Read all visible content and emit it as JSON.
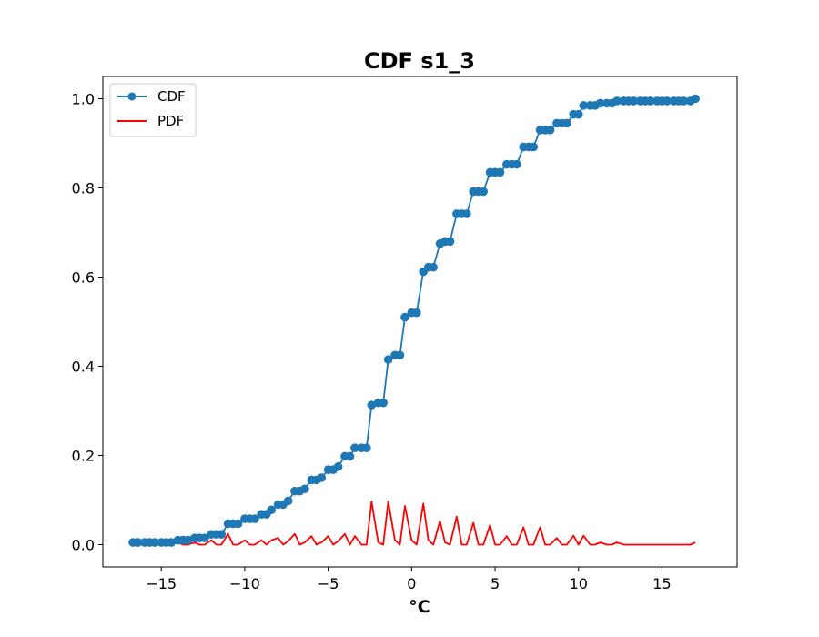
{
  "chart_data": {
    "type": "line",
    "title": "CDF s1_3",
    "xlabel": "°C",
    "ylabel": "",
    "xlim": [
      -18.5,
      19.5
    ],
    "ylim": [
      -0.05,
      1.05
    ],
    "xticks": [
      -15,
      -10,
      -5,
      0,
      5,
      10,
      15
    ],
    "xtick_labels": [
      "−15",
      "−10",
      "−5",
      "0",
      "5",
      "10",
      "15"
    ],
    "yticks": [
      0.0,
      0.2,
      0.4,
      0.6,
      0.8,
      1.0
    ],
    "ytick_labels": [
      "0.0",
      "0.2",
      "0.4",
      "0.6",
      "0.8",
      "1.0"
    ],
    "grid": false,
    "legend_position": "top-left",
    "colors": {
      "cdf": "#1f77b4",
      "pdf": "#ff0000"
    },
    "series": [
      {
        "name": "CDF",
        "marker": "circle",
        "x": [
          -16.7,
          -16.4,
          -16.0,
          -15.7,
          -15.4,
          -15.0,
          -14.7,
          -14.4,
          -14.0,
          -13.7,
          -13.4,
          -13.0,
          -12.7,
          -12.4,
          -12.0,
          -11.7,
          -11.4,
          -11.0,
          -10.7,
          -10.4,
          -10.0,
          -9.7,
          -9.4,
          -9.0,
          -8.7,
          -8.4,
          -8.0,
          -7.7,
          -7.4,
          -7.0,
          -6.7,
          -6.4,
          -6.0,
          -5.7,
          -5.4,
          -5.0,
          -4.7,
          -4.4,
          -4.0,
          -3.7,
          -3.4,
          -3.0,
          -2.7,
          -2.4,
          -2.0,
          -1.7,
          -1.4,
          -1.0,
          -0.7,
          -0.4,
          0.0,
          0.3,
          0.7,
          1.0,
          1.3,
          1.7,
          2.0,
          2.3,
          2.7,
          3.0,
          3.3,
          3.7,
          4.0,
          4.3,
          4.7,
          5.0,
          5.3,
          5.7,
          6.0,
          6.3,
          6.7,
          7.0,
          7.3,
          7.7,
          8.0,
          8.3,
          8.7,
          9.0,
          9.3,
          9.7,
          10.0,
          10.3,
          10.7,
          11.0,
          11.3,
          11.7,
          12.0,
          12.3,
          12.7,
          13.0,
          13.3,
          13.7,
          14.0,
          14.3,
          14.7,
          15.0,
          15.3,
          15.7,
          16.0,
          16.3,
          16.7,
          17.0
        ],
        "y": [
          0.005,
          0.005,
          0.005,
          0.005,
          0.005,
          0.005,
          0.005,
          0.005,
          0.01,
          0.01,
          0.01,
          0.015,
          0.015,
          0.015,
          0.023,
          0.023,
          0.023,
          0.047,
          0.047,
          0.047,
          0.058,
          0.058,
          0.058,
          0.068,
          0.068,
          0.078,
          0.09,
          0.09,
          0.098,
          0.12,
          0.12,
          0.125,
          0.145,
          0.145,
          0.15,
          0.168,
          0.168,
          0.175,
          0.198,
          0.198,
          0.217,
          0.217,
          0.217,
          0.313,
          0.318,
          0.318,
          0.415,
          0.425,
          0.425,
          0.51,
          0.52,
          0.52,
          0.612,
          0.622,
          0.622,
          0.675,
          0.68,
          0.68,
          0.742,
          0.742,
          0.742,
          0.792,
          0.792,
          0.792,
          0.835,
          0.835,
          0.835,
          0.853,
          0.853,
          0.853,
          0.892,
          0.892,
          0.892,
          0.93,
          0.93,
          0.93,
          0.945,
          0.945,
          0.945,
          0.965,
          0.965,
          0.985,
          0.985,
          0.985,
          0.99,
          0.99,
          0.99,
          0.995,
          0.995,
          0.995,
          0.995,
          0.995,
          0.995,
          0.995,
          0.995,
          0.995,
          0.995,
          0.995,
          0.995,
          0.995,
          0.995,
          1.0
        ]
      },
      {
        "name": "PDF",
        "marker": "none",
        "x": [
          -16.7,
          -16.4,
          -16.0,
          -15.7,
          -15.4,
          -15.0,
          -14.7,
          -14.4,
          -14.0,
          -13.7,
          -13.4,
          -13.0,
          -12.7,
          -12.4,
          -12.0,
          -11.7,
          -11.4,
          -11.0,
          -10.7,
          -10.4,
          -10.0,
          -9.7,
          -9.4,
          -9.0,
          -8.7,
          -8.4,
          -8.0,
          -7.7,
          -7.4,
          -7.0,
          -6.7,
          -6.4,
          -6.0,
          -5.7,
          -5.4,
          -5.0,
          -4.7,
          -4.4,
          -4.0,
          -3.7,
          -3.4,
          -3.0,
          -2.7,
          -2.4,
          -2.0,
          -1.7,
          -1.4,
          -1.0,
          -0.7,
          -0.4,
          0.0,
          0.3,
          0.7,
          1.0,
          1.3,
          1.7,
          2.0,
          2.3,
          2.7,
          3.0,
          3.3,
          3.7,
          4.0,
          4.3,
          4.7,
          5.0,
          5.3,
          5.7,
          6.0,
          6.3,
          6.7,
          7.0,
          7.3,
          7.7,
          8.0,
          8.3,
          8.7,
          9.0,
          9.3,
          9.7,
          10.0,
          10.3,
          10.7,
          11.0,
          11.3,
          11.7,
          12.0,
          12.3,
          12.7,
          13.0,
          13.3,
          13.7,
          14.0,
          14.3,
          14.7,
          15.0,
          15.3,
          15.7,
          16.0,
          16.3,
          16.7,
          17.0
        ],
        "y": [
          0.005,
          0.0,
          0.0,
          0.0,
          0.0,
          0.0,
          0.0,
          0.0,
          0.005,
          0.0,
          0.0,
          0.005,
          0.0,
          0.0,
          0.01,
          0.0,
          0.0,
          0.024,
          0.0,
          0.0,
          0.01,
          0.0,
          0.0,
          0.01,
          0.0,
          0.01,
          0.015,
          0.0,
          0.008,
          0.024,
          0.0,
          0.005,
          0.019,
          0.0,
          0.005,
          0.019,
          0.0,
          0.008,
          0.024,
          0.0,
          0.019,
          0.0,
          0.0,
          0.097,
          0.005,
          0.0,
          0.097,
          0.01,
          0.0,
          0.087,
          0.01,
          0.0,
          0.092,
          0.01,
          0.0,
          0.053,
          0.005,
          0.0,
          0.063,
          0.0,
          0.0,
          0.049,
          0.0,
          0.0,
          0.044,
          0.0,
          0.0,
          0.019,
          0.0,
          0.0,
          0.039,
          0.0,
          0.0,
          0.039,
          0.0,
          0.0,
          0.015,
          0.0,
          0.0,
          0.02,
          0.0,
          0.02,
          0.0,
          0.0,
          0.005,
          0.0,
          0.0,
          0.005,
          0.0,
          0.0,
          0.0,
          0.0,
          0.0,
          0.0,
          0.0,
          0.0,
          0.0,
          0.0,
          0.0,
          0.0,
          0.0,
          0.005
        ]
      }
    ]
  }
}
